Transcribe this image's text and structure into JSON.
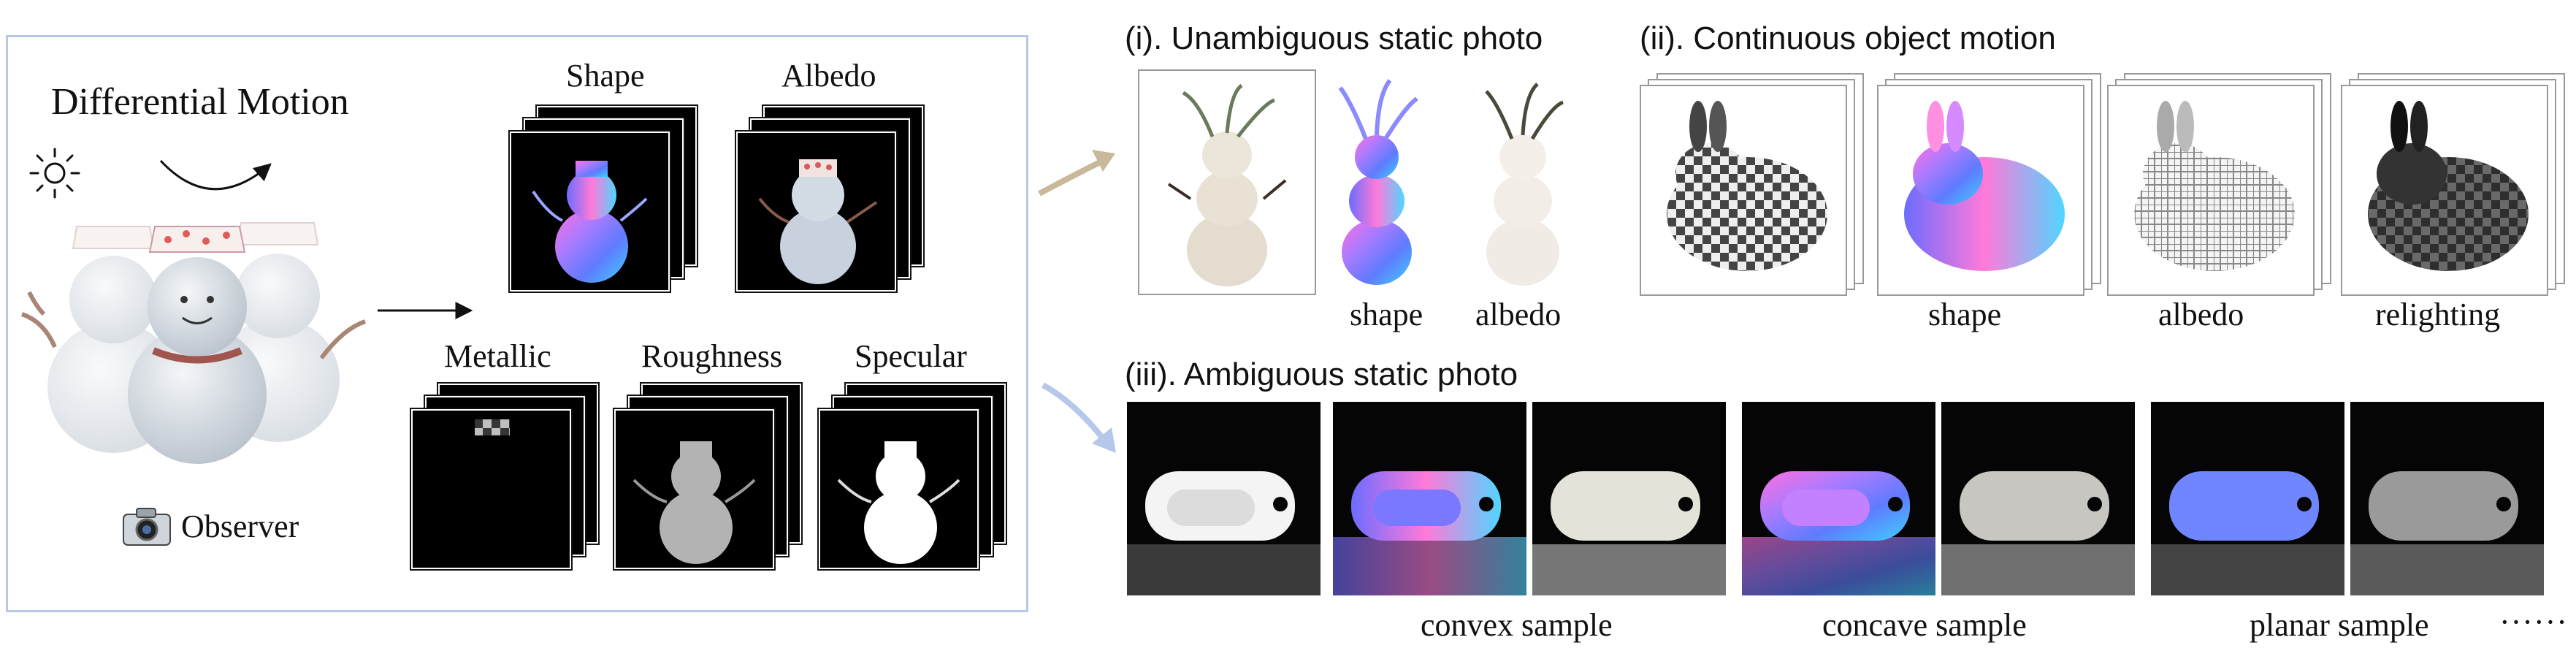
{
  "colors": {
    "panel_border": "#b9c8e6",
    "arrow_gold": "#c7b99a",
    "arrow_blue": "#b5c8ea"
  },
  "left_panel": {
    "title": "Differential Motion",
    "observer_label": "Observer",
    "stacks": {
      "shape": "Shape",
      "albedo": "Albedo",
      "metallic": "Metallic",
      "roughness": "Roughness",
      "specular": "Specular"
    },
    "icons": [
      "sun-icon",
      "camera-icon"
    ]
  },
  "section_i": {
    "title": "(i). Unambiguous static photo",
    "labels": {
      "shape": "shape",
      "albedo": "albedo"
    }
  },
  "section_ii": {
    "title": "(ii). Continuous object motion",
    "labels": {
      "shape": "shape",
      "albedo": "albedo",
      "relighting": "relighting"
    }
  },
  "section_iii": {
    "title": "(iii). Ambiguous static photo",
    "labels": {
      "convex": "convex sample",
      "concave": "concave sample",
      "planar": "planar sample",
      "ellipsis": "······"
    }
  }
}
